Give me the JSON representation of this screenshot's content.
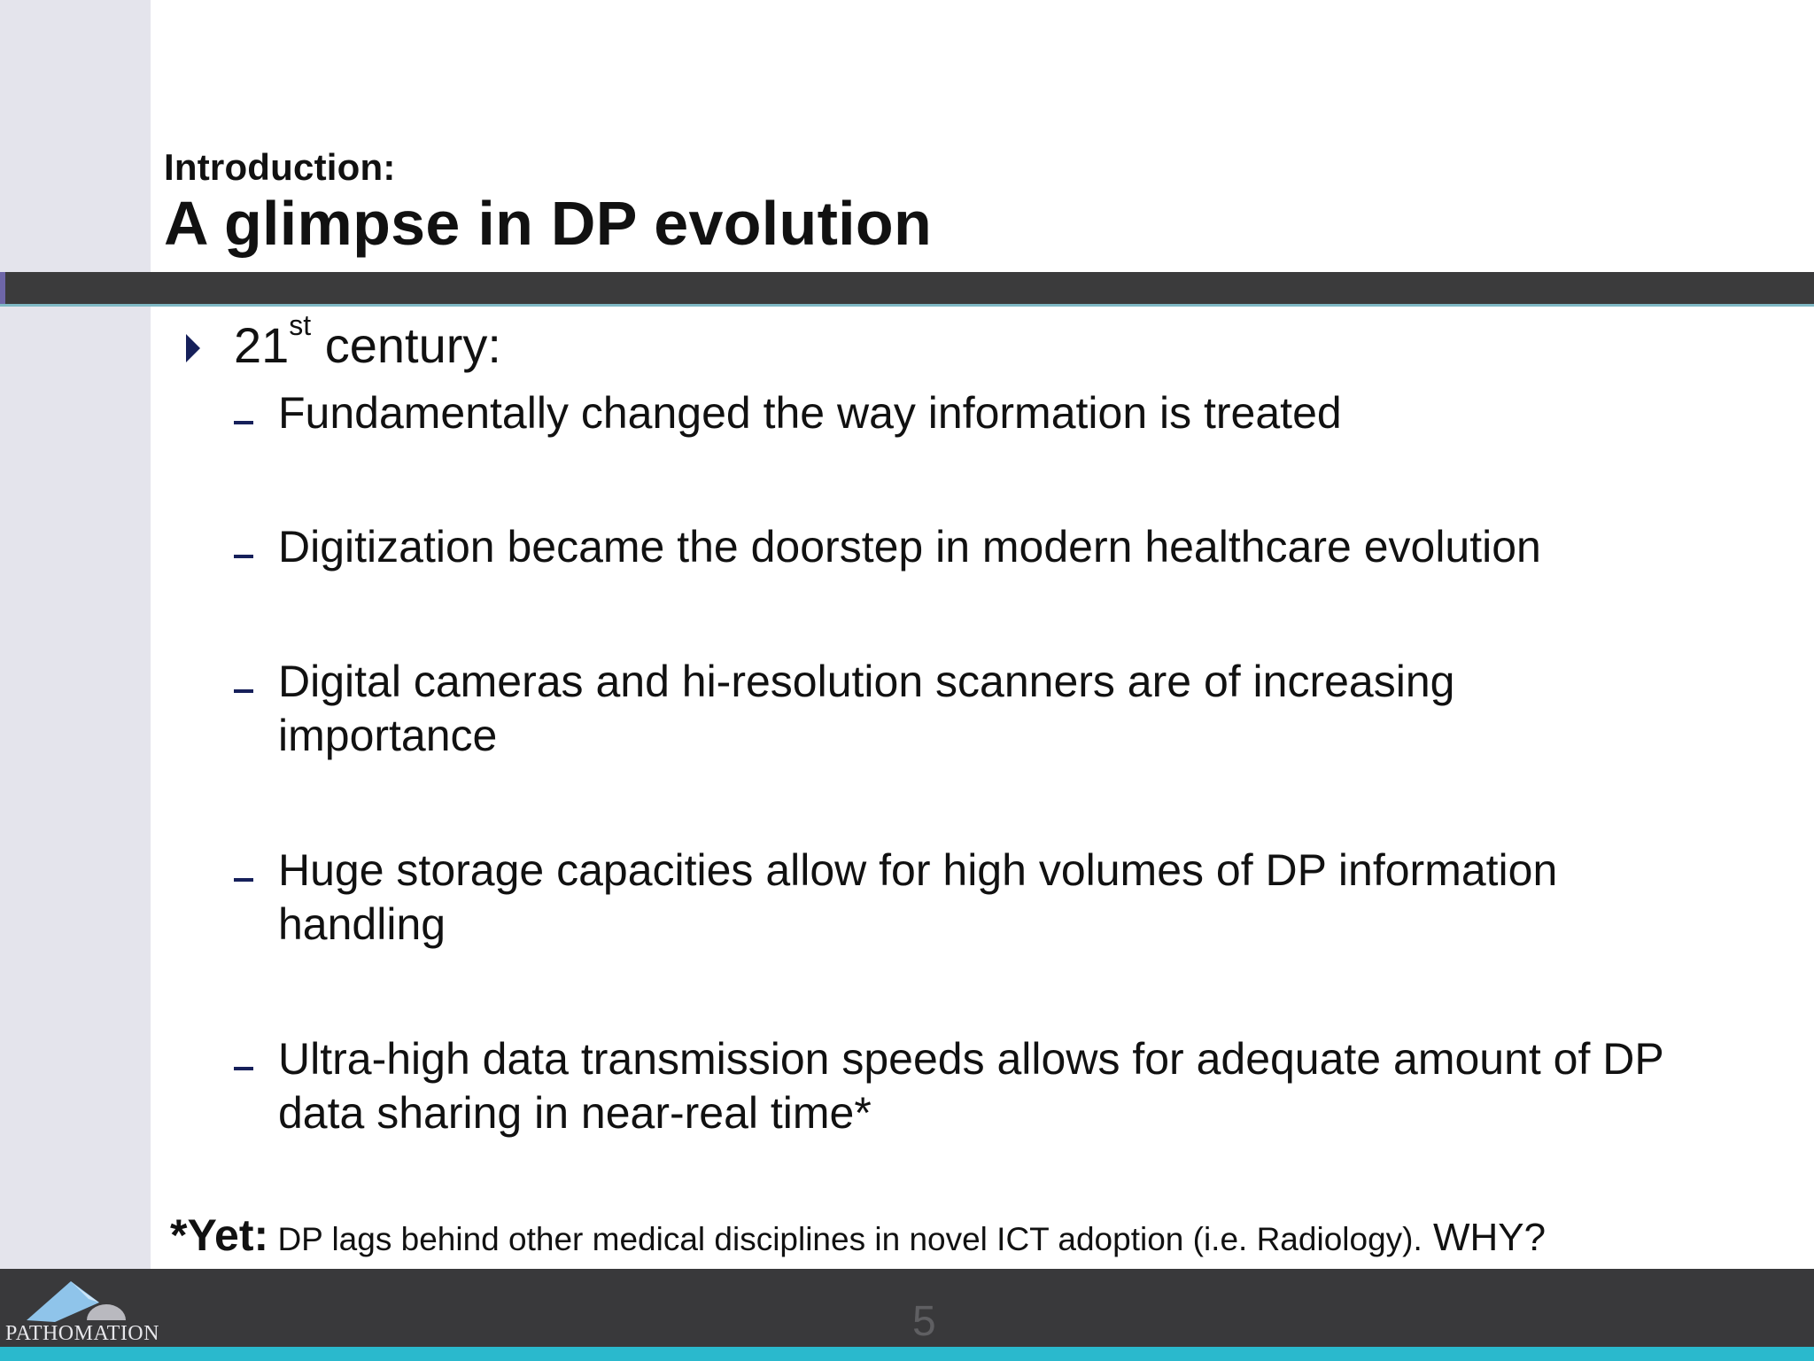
{
  "slide": {
    "subtitle": "Introduction:",
    "title": "A glimpse in DP evolution",
    "bullet": {
      "prefix": "21",
      "superscript": "st",
      "suffix": " century:"
    },
    "subpoints": [
      "Fundamentally changed the way information is treated",
      "Digitization became the doorstep in modern healthcare evolution",
      "Digital cameras and hi-resolution scanners are of increasing importance",
      "Huge storage capacities allow for high volumes of DP information handling",
      "Ultra-high data transmission speeds allows for adequate amount of DP data sharing in near-real time*"
    ],
    "footnote": {
      "lead": "*Yet:",
      "body": " DP lags behind other medical disciplines in novel ICT adoption (i.e. Radiology).",
      "tail": " WHY?"
    },
    "page_number": "5",
    "logo_text": "PATHOMATION"
  },
  "colors": {
    "header_bar": "#3b3b3c",
    "accent_line": "#2ab9cd",
    "bullet": "#16205a",
    "side_band": "#e4e4ec"
  },
  "icons": {
    "bullet": "arrow-bullet-icon",
    "sub_bullet": "dash-bullet-icon",
    "logo": "pathomation-logo-icon"
  }
}
